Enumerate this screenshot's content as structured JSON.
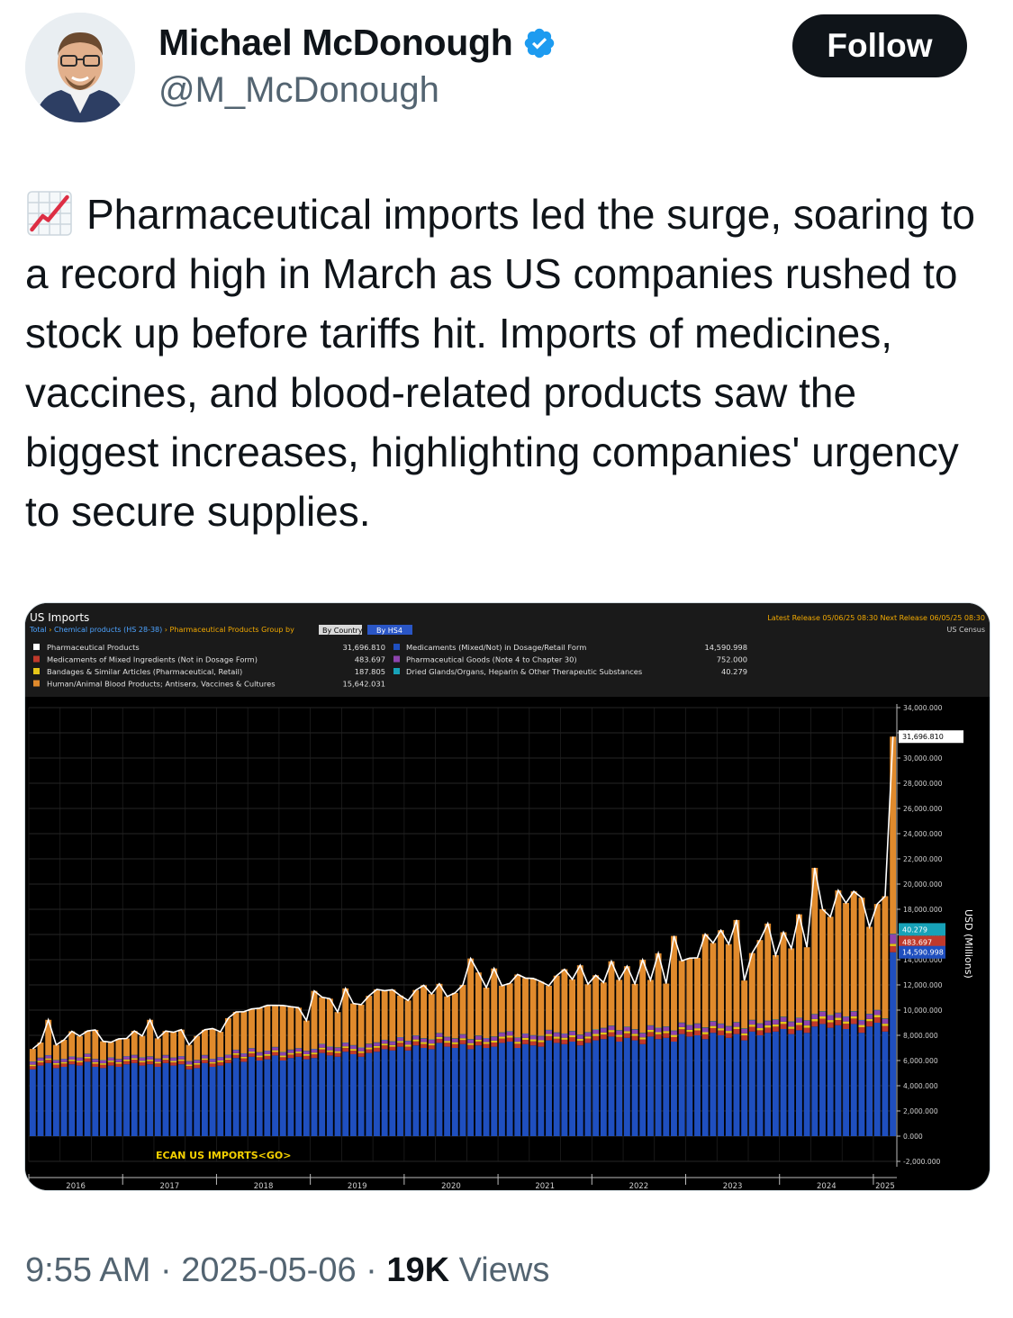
{
  "author": {
    "name": "Michael McDonough",
    "handle": "@M_McDonough",
    "verified": true,
    "follow_label": "Follow"
  },
  "tweet": {
    "emoji_icon": "chart-increasing-icon",
    "text": "Pharmaceutical imports led the surge, soaring to a record high in March as US companies rushed to stock up before tariffs hit. Imports of medicines, vaccines, and blood-related products saw the biggest increases, highlighting companies' urgency to secure supplies."
  },
  "meta": {
    "time": "9:55 AM",
    "sep1": " · ",
    "date": "2025-05-06",
    "sep2": " · ",
    "views_count": "19K",
    "views_label": " Views"
  },
  "chart_header": {
    "title": "US Imports",
    "breadcrumb_total": "Total",
    "breadcrumb_chem": "Chemical products (HS 28-38)",
    "breadcrumb_pharma": "Pharmaceutical Products",
    "group_by": "Group by",
    "btn_country": "By Country",
    "btn_hs4": "By HS4",
    "release": "Latest Release 05/06/25 08:30  Next Release 06/05/25 08:30",
    "source": "US Census",
    "ecan": "ECAN US IMPORTS<GO>",
    "axis_unit": "USD (Millions)"
  },
  "colors": {
    "blue": "#1f4fbf",
    "red": "#c0392b",
    "yellow": "#e6c619",
    "purple": "#8e44ad",
    "teal": "#17a2b8",
    "orange": "#e08a2c",
    "total_line": "#ffffff",
    "background": "#000000",
    "grid": "#333333"
  },
  "chart_data": {
    "type": "bar",
    "stacked": true,
    "x_start": "2016-01",
    "x_end": "2025-03",
    "x_tick_labels": [
      "2016",
      "2017",
      "2018",
      "2019",
      "2020",
      "2021",
      "2022",
      "2023",
      "2024",
      "2025"
    ],
    "ylabel": "USD (Millions)",
    "ylim": [
      -2000000,
      34000000
    ],
    "y_ticks": [
      34000000,
      32000000,
      30000000,
      28000000,
      26000000,
      24000000,
      22000000,
      20000000,
      18000000,
      16000000,
      14000000,
      12000000,
      10000000,
      8000000,
      6000000,
      4000000,
      2000000,
      0,
      -2000000
    ],
    "y_tick_labels": [
      "34,000.000",
      "32,000.000",
      "30,000.000",
      "28,000.000",
      "26,000.000",
      "24,000.000",
      "22,000.000",
      "20,000.000",
      "18,000.000",
      "16,000.000",
      "14,000.000",
      "12,000.000",
      "10,000.000",
      "8,000.000",
      "6,000.000",
      "4,000.000",
      "2,000.000",
      "0.000",
      "-2,000.000"
    ],
    "legend": [
      {
        "name": "Pharmaceutical Products",
        "value": "31,696.810",
        "color_key": "total_line"
      },
      {
        "name": "Medicaments of Mixed Ingredients (Not in Dosage Form)",
        "value": "483.697",
        "color_key": "red"
      },
      {
        "name": "Bandages & Similar Articles (Pharmaceutical, Retail)",
        "value": "187.805",
        "color_key": "yellow"
      },
      {
        "name": "Human/Animal Blood Products; Antisera, Vaccines & Cultures",
        "value": "15,642.031",
        "color_key": "orange"
      },
      {
        "name": "Medicaments (Mixed/Not) in Dosage/Retail Form",
        "value": "14,590.998",
        "color_key": "blue"
      },
      {
        "name": "Pharmaceutical Goods (Note 4 to Chapter 30)",
        "value": "752.000",
        "color_key": "purple"
      },
      {
        "name": "Dried Glands/Organs, Heparin & Other Therapeutic Substances",
        "value": "40.279",
        "color_key": "teal"
      }
    ],
    "last_value_labels": [
      {
        "text": "31,696.810",
        "y": 31696810,
        "color_key": "total_line"
      },
      {
        "text": "40.279",
        "y": 16400000,
        "color_key": "teal"
      },
      {
        "text": "483.697",
        "y": 15400000,
        "color_key": "red"
      },
      {
        "text": "14,590.998",
        "y": 14590998,
        "color_key": "blue"
      }
    ],
    "series": [
      {
        "name": "Medicaments (Mixed/Not) in Dosage/Retail Form",
        "color_key": "blue",
        "values": [
          5300000,
          5600000,
          5800000,
          5400000,
          5500000,
          5700000,
          5600000,
          5900000,
          5500000,
          5400000,
          5600000,
          5500000,
          5700000,
          5800000,
          5600000,
          5700000,
          5500000,
          5800000,
          5600000,
          5700000,
          5300000,
          5400000,
          5800000,
          5500000,
          5600000,
          5800000,
          6200000,
          5900000,
          6300000,
          6000000,
          6100000,
          6400000,
          6000000,
          6200000,
          6300000,
          6100000,
          6200000,
          6600000,
          6400000,
          6300000,
          6700000,
          6500000,
          6300000,
          6600000,
          6700000,
          6900000,
          6800000,
          7100000,
          6800000,
          7200000,
          7000000,
          6900000,
          7400000,
          7100000,
          7000000,
          7300000,
          6900000,
          7200000,
          7000000,
          7100000,
          7400000,
          7500000,
          7000000,
          7300000,
          7200000,
          7100000,
          7600000,
          7400000,
          7300000,
          7500000,
          7200000,
          7400000,
          7600000,
          7700000,
          7900000,
          7500000,
          7800000,
          7600000,
          7300000,
          7900000,
          7700000,
          7800000,
          7500000,
          8100000,
          7900000,
          8000000,
          7700000,
          8200000,
          8000000,
          7800000,
          8100000,
          7600000,
          8300000,
          8000000,
          8200000,
          8300000,
          8500000,
          8100000,
          8400000,
          8200000,
          8700000,
          8900000,
          8600000,
          8800000,
          8500000,
          8900000,
          8200000,
          8700000,
          9000000,
          8300000,
          14590998
        ]
      },
      {
        "name": "Medicaments of Mixed Ingredients (Not in Dosage Form)",
        "color_key": "red",
        "values": [
          250000,
          260000,
          250000,
          270000,
          260000,
          250000,
          260000,
          270000,
          250000,
          260000,
          270000,
          250000,
          260000,
          270000,
          260000,
          250000,
          270000,
          260000,
          250000,
          270000,
          260000,
          270000,
          250000,
          260000,
          270000,
          260000,
          250000,
          270000,
          280000,
          260000,
          270000,
          280000,
          260000,
          270000,
          280000,
          270000,
          290000,
          280000,
          270000,
          300000,
          290000,
          280000,
          300000,
          290000,
          310000,
          300000,
          290000,
          310000,
          300000,
          320000,
          310000,
          300000,
          320000,
          310000,
          300000,
          320000,
          330000,
          310000,
          320000,
          330000,
          340000,
          320000,
          330000,
          340000,
          320000,
          350000,
          340000,
          330000,
          350000,
          340000,
          360000,
          350000,
          340000,
          360000,
          350000,
          370000,
          360000,
          350000,
          370000,
          360000,
          380000,
          370000,
          360000,
          380000,
          370000,
          390000,
          380000,
          370000,
          390000,
          380000,
          400000,
          390000,
          380000,
          400000,
          410000,
          390000,
          400000,
          410000,
          420000,
          400000,
          410000,
          420000,
          430000,
          410000,
          420000,
          430000,
          440000,
          420000,
          430000,
          440000,
          483697
        ]
      },
      {
        "name": "Bandages & Similar Articles (Pharmaceutical, Retail)",
        "color_key": "yellow",
        "values": [
          120000,
          120000,
          120000,
          120000,
          120000,
          120000,
          120000,
          120000,
          120000,
          120000,
          120000,
          120000,
          120000,
          120000,
          120000,
          120000,
          120000,
          120000,
          120000,
          120000,
          120000,
          120000,
          120000,
          120000,
          130000,
          130000,
          130000,
          130000,
          130000,
          130000,
          130000,
          130000,
          130000,
          130000,
          130000,
          130000,
          140000,
          140000,
          140000,
          140000,
          140000,
          140000,
          140000,
          140000,
          140000,
          140000,
          140000,
          140000,
          150000,
          150000,
          150000,
          150000,
          150000,
          150000,
          150000,
          150000,
          150000,
          150000,
          150000,
          150000,
          160000,
          160000,
          160000,
          160000,
          160000,
          160000,
          160000,
          160000,
          160000,
          160000,
          160000,
          160000,
          170000,
          170000,
          170000,
          170000,
          170000,
          170000,
          170000,
          170000,
          170000,
          170000,
          170000,
          170000,
          170000,
          170000,
          170000,
          170000,
          170000,
          170000,
          170000,
          170000,
          170000,
          170000,
          180000,
          180000,
          180000,
          180000,
          180000,
          180000,
          180000,
          180000,
          180000,
          180000,
          180000,
          180000,
          180000,
          180000,
          180000,
          180000,
          187805
        ]
      },
      {
        "name": "Pharmaceutical Goods (Note 4 to Chapter 30)",
        "color_key": "purple",
        "values": [
          220000,
          220000,
          230000,
          220000,
          230000,
          220000,
          230000,
          220000,
          230000,
          220000,
          230000,
          220000,
          240000,
          230000,
          240000,
          230000,
          240000,
          230000,
          240000,
          230000,
          240000,
          230000,
          240000,
          230000,
          250000,
          240000,
          250000,
          240000,
          250000,
          240000,
          250000,
          240000,
          250000,
          240000,
          250000,
          240000,
          260000,
          270000,
          260000,
          270000,
          260000,
          270000,
          260000,
          270000,
          260000,
          270000,
          260000,
          270000,
          280000,
          290000,
          280000,
          290000,
          280000,
          290000,
          280000,
          290000,
          280000,
          290000,
          280000,
          290000,
          300000,
          310000,
          300000,
          310000,
          300000,
          310000,
          300000,
          310000,
          300000,
          310000,
          300000,
          310000,
          320000,
          330000,
          320000,
          330000,
          320000,
          330000,
          320000,
          330000,
          320000,
          330000,
          320000,
          330000,
          340000,
          350000,
          340000,
          350000,
          340000,
          350000,
          340000,
          350000,
          340000,
          350000,
          340000,
          350000,
          360000,
          370000,
          360000,
          370000,
          360000,
          370000,
          360000,
          370000,
          360000,
          370000,
          360000,
          370000,
          370000,
          380000,
          752000
        ]
      },
      {
        "name": "Dried Glands/Organs, Heparin & Other Therapeutic Substances",
        "color_key": "teal",
        "values": [
          30000,
          30000,
          30000,
          30000,
          30000,
          30000,
          30000,
          30000,
          30000,
          30000,
          30000,
          30000,
          30000,
          30000,
          30000,
          30000,
          30000,
          30000,
          30000,
          30000,
          30000,
          30000,
          30000,
          30000,
          30000,
          30000,
          30000,
          30000,
          30000,
          30000,
          30000,
          30000,
          30000,
          30000,
          30000,
          30000,
          35000,
          35000,
          35000,
          35000,
          35000,
          35000,
          35000,
          35000,
          35000,
          35000,
          35000,
          35000,
          35000,
          35000,
          35000,
          35000,
          35000,
          35000,
          35000,
          35000,
          35000,
          35000,
          35000,
          35000,
          35000,
          35000,
          35000,
          35000,
          35000,
          35000,
          35000,
          35000,
          35000,
          35000,
          35000,
          35000,
          35000,
          35000,
          35000,
          35000,
          35000,
          35000,
          35000,
          35000,
          35000,
          35000,
          35000,
          35000,
          38000,
          38000,
          38000,
          38000,
          38000,
          38000,
          38000,
          38000,
          38000,
          38000,
          38000,
          38000,
          38000,
          38000,
          38000,
          38000,
          38000,
          38000,
          38000,
          38000,
          38000,
          38000,
          38000,
          38000,
          38000,
          38000,
          40279
        ]
      },
      {
        "name": "Human/Animal Blood Products; Antisera, Vaccines & Cultures",
        "color_key": "orange",
        "values": [
          1000000,
          1200000,
          2800000,
          1200000,
          1500000,
          2000000,
          1700000,
          1800000,
          2300000,
          1500000,
          1200000,
          1600000,
          1400000,
          1900000,
          1700000,
          2900000,
          1600000,
          1900000,
          2000000,
          2100000,
          1300000,
          1900000,
          2000000,
          2400000,
          2000000,
          2900000,
          3000000,
          3300000,
          3100000,
          3500000,
          3600000,
          3300000,
          3700000,
          3400000,
          3200000,
          2400000,
          4600000,
          3700000,
          3800000,
          2800000,
          4300000,
          3300000,
          3400000,
          3800000,
          4200000,
          3900000,
          4100000,
          3300000,
          3200000,
          3600000,
          4200000,
          3600000,
          3900000,
          3200000,
          3600000,
          3900000,
          6400000,
          5000000,
          4000000,
          5400000,
          3700000,
          3800000,
          5000000,
          4400000,
          4500000,
          4300000,
          3500000,
          4500000,
          5100000,
          4100000,
          5500000,
          3800000,
          4300000,
          3600000,
          5100000,
          4000000,
          4800000,
          3600000,
          5800000,
          3600000,
          5900000,
          3400000,
          7500000,
          4900000,
          5300000,
          5200000,
          7400000,
          6200000,
          7400000,
          6500000,
          8100000,
          3800000,
          5300000,
          6600000,
          7700000,
          5100000,
          6700000,
          5800000,
          8200000,
          5800000,
          11600000,
          8100000,
          7800000,
          9700000,
          9000000,
          9500000,
          9700000,
          6900000,
          8400000,
          9700000,
          15642031
        ]
      }
    ]
  }
}
